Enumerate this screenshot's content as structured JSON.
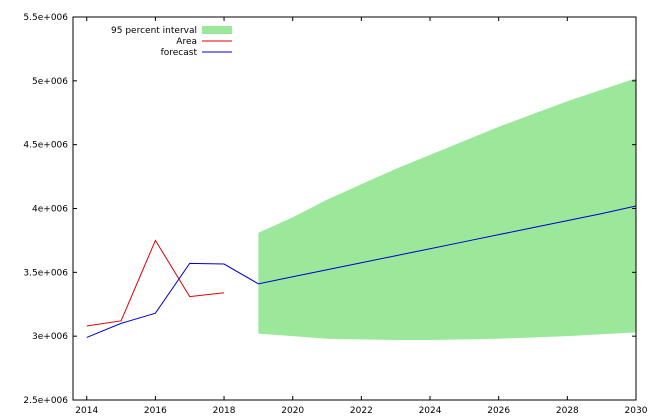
{
  "chart_data": {
    "type": "line",
    "title": "",
    "xlabel": "",
    "ylabel": "",
    "xlim": [
      2013.6,
      2030
    ],
    "ylim": [
      2500000,
      5500000
    ],
    "x_ticks": [
      2014,
      2016,
      2018,
      2020,
      2022,
      2024,
      2026,
      2028,
      2030
    ],
    "x_tick_labels": [
      "2014",
      "2016",
      "2018",
      "2020",
      "2022",
      "2024",
      "2026",
      "2028",
      "2030"
    ],
    "y_ticks": [
      2500000,
      3000000,
      3500000,
      4000000,
      4500000,
      5000000,
      5500000
    ],
    "y_tick_labels": [
      "2.5e+006",
      "3e+006",
      "3.5e+006",
      "4e+006",
      "4.5e+006",
      "5e+006",
      "5.5e+006"
    ],
    "grid": false,
    "legend_position": "top-left",
    "interval": {
      "name": "95 percent interval",
      "color": "#9be89b",
      "x": [
        2019,
        2020,
        2021,
        2022,
        2023,
        2024,
        2025,
        2026,
        2027,
        2028,
        2029,
        2030
      ],
      "upper": [
        3810000,
        3930000,
        4070000,
        4190000,
        4310000,
        4420000,
        4530000,
        4640000,
        4740000,
        4840000,
        4930000,
        5020000
      ],
      "lower": [
        3020000,
        3000000,
        2980000,
        2975000,
        2970000,
        2970000,
        2975000,
        2980000,
        2990000,
        3000000,
        3015000,
        3030000
      ]
    },
    "series": [
      {
        "name": "Area",
        "color": "#dd0000",
        "x": [
          2014,
          2015,
          2016,
          2017,
          2018
        ],
        "y": [
          3080000,
          3120000,
          3750000,
          3310000,
          3340000
        ]
      },
      {
        "name": "forecast",
        "color": "#0000cc",
        "x": [
          2014,
          2015,
          2016,
          2017,
          2018,
          2019,
          2020,
          2021,
          2022,
          2023,
          2024,
          2025,
          2026,
          2027,
          2028,
          2029,
          2030
        ],
        "y": [
          2990000,
          3100000,
          3180000,
          3570000,
          3565000,
          3410000,
          3465000,
          3520000,
          3575000,
          3630000,
          3685000,
          3740000,
          3795000,
          3850000,
          3905000,
          3960000,
          4020000
        ]
      }
    ]
  }
}
